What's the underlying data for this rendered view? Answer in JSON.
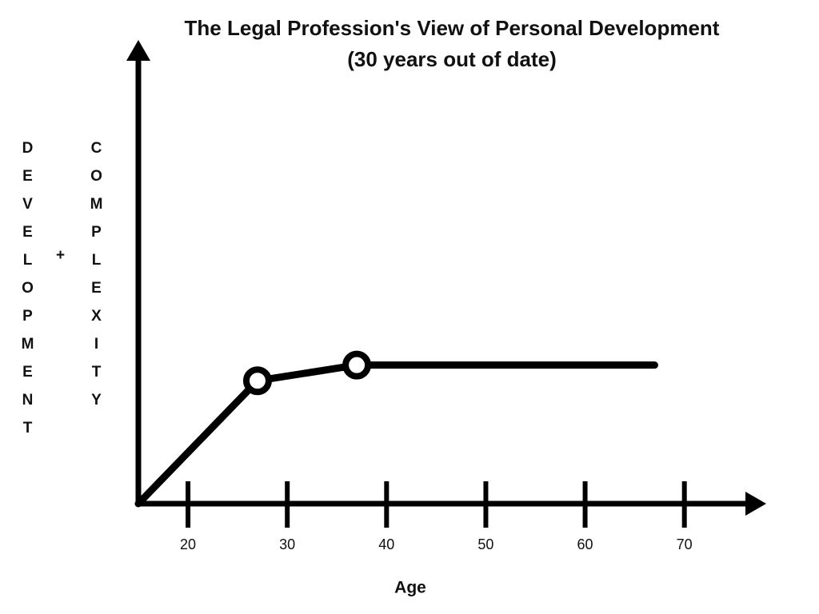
{
  "chart_data": {
    "type": "line",
    "title": "The Legal Profession's View of Personal Development",
    "subtitle": "(30 years out of date)",
    "xlabel": "Age",
    "ylabel": [
      "DEVELOPMENT",
      "+",
      "COMPLEXITY"
    ],
    "x": [
      15,
      27,
      37,
      67
    ],
    "values": [
      0,
      27.5,
      31,
      31
    ],
    "markers": [
      null,
      "circle",
      "circle",
      null
    ],
    "color": "#000000",
    "xlim": [
      15,
      78
    ],
    "xticks": [
      20,
      30,
      40,
      50,
      60,
      70
    ],
    "ylim": [
      0,
      103
    ]
  }
}
